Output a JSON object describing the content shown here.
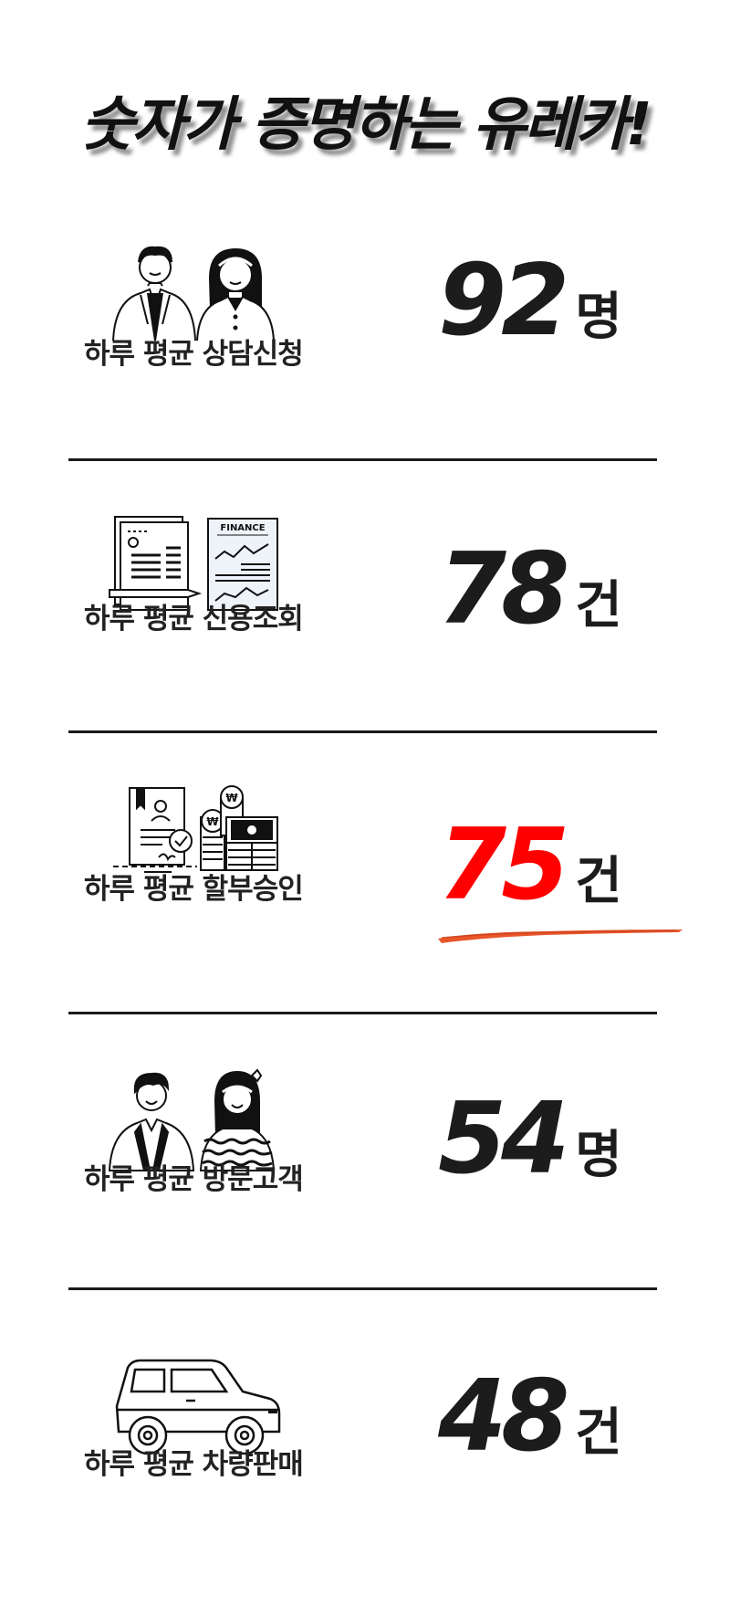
{
  "headline": "숫자가 증명하는 유레카!",
  "stats": [
    {
      "label": "하루 평균 상담신청",
      "value": "92",
      "unit": "명",
      "icon": "consultation-people-icon"
    },
    {
      "label": "하루 평균 신용조회",
      "value": "78",
      "unit": "건",
      "icon": "finance-documents-icon"
    },
    {
      "label": "하루 평균 할부승인",
      "value": "75",
      "unit": "건",
      "icon": "installment-approval-icon",
      "highlight_color": "#ff0000"
    },
    {
      "label": "하루 평균 방문고객",
      "value": "54",
      "unit": "명",
      "icon": "visitor-people-icon"
    },
    {
      "label": "하루 평균 차량판매",
      "value": "48",
      "unit": "건",
      "icon": "car-icon"
    }
  ],
  "finance_doc_text": "FINANCE",
  "colors": {
    "text": "#1a1a1a",
    "highlight": "#ff0000",
    "brush": "#e8562a"
  }
}
